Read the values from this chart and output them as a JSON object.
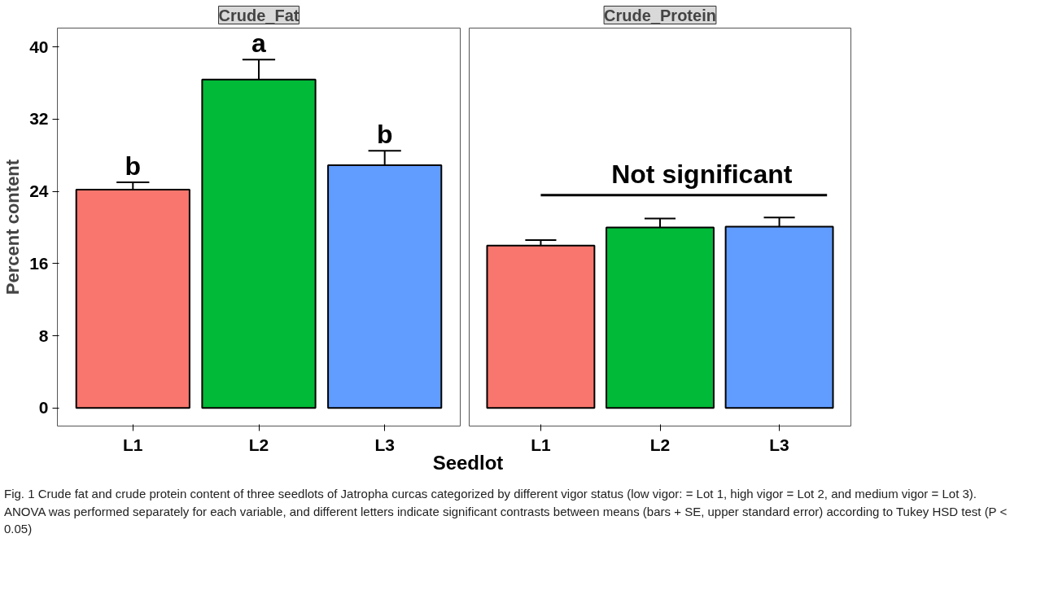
{
  "chart_data": [
    {
      "type": "bar",
      "title": "Crude_Fat",
      "ylabel": "Percent content",
      "xlabel": "Seedlot",
      "categories": [
        "L1",
        "L2",
        "L3"
      ],
      "values": [
        24.2,
        36.4,
        26.9
      ],
      "colors": [
        "#f8766d",
        "#00ba38",
        "#619cff"
      ],
      "errors": [
        [
          24.2,
          25.0
        ],
        [
          36.4,
          38.6
        ],
        [
          26.9,
          28.5
        ]
      ],
      "ylim": [
        -2,
        42.1
      ],
      "yticks": [
        0,
        8,
        16,
        24,
        32,
        40
      ],
      "grid": false,
      "annotations": [
        {
          "text": "b",
          "x": "L1",
          "y": 25.0
        },
        {
          "text": "a",
          "x": "L2",
          "y": 38.6
        },
        {
          "text": "b",
          "x": "L3",
          "y": 28.5
        },
        "Fig. 1 Crude fat and crude protein content of three seedlots of Jatropha curcas categorized by different vigor status (low vigor: = Lot 1, high vigor = Lot 2, and medium vigor = Lot 3). ANOVA was performed separately for each variable, and different letters indicate significant contrasts between means (bars + SE, upper standard error) according to Tukey HSD test (P < 0.05)"
      ]
    },
    {
      "type": "bar",
      "title": "Crude_Protein",
      "categories": [
        "L1",
        "L2",
        "L3"
      ],
      "values": [
        18.0,
        20.0,
        20.1
      ],
      "colors": [
        "#f8766d",
        "#00ba38",
        "#619cff"
      ],
      "errors": [
        [
          18.0,
          18.6
        ],
        [
          20.0,
          21.0
        ],
        [
          20.1,
          21.1
        ]
      ],
      "ylim": [
        -2,
        42.1
      ],
      "yticks": [
        0,
        8,
        16,
        24,
        32,
        40
      ],
      "grid": false,
      "tick_labels": "x",
      "ref_lines": [
        {
          "axis": "y",
          "value": 23.6,
          "label": "Not significant",
          "color": "#000000"
        }
      ]
    }
  ]
}
